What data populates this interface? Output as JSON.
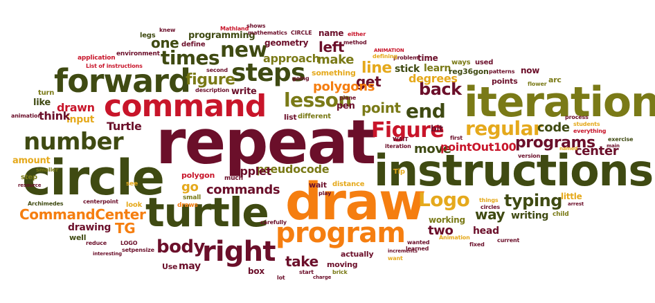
{
  "colors": {
    "dark_olive": "#3f4a12",
    "orange": "#f57e10",
    "gold": "#e5a91c",
    "maroon": "#6b0f2a",
    "red": "#c8152a",
    "olive": "#7a7a17",
    "light_olive": "#9a9a22"
  },
  "words": [
    {
      "t": "repeat"
    },
    {
      "t": "instructions"
    },
    {
      "t": "circle"
    },
    {
      "t": "draw"
    },
    {
      "t": "turtle"
    },
    {
      "t": "iteration"
    },
    {
      "t": "command"
    },
    {
      "t": "forward"
    },
    {
      "t": "number"
    },
    {
      "t": "program"
    },
    {
      "t": "steps"
    },
    {
      "t": "right"
    },
    {
      "t": "Figure"
    },
    {
      "t": "new"
    },
    {
      "t": "times"
    },
    {
      "t": "lesson"
    },
    {
      "t": "regular"
    },
    {
      "t": "Logo"
    },
    {
      "t": "end"
    },
    {
      "t": "body"
    },
    {
      "t": "typing"
    },
    {
      "t": "CommandCenter"
    },
    {
      "t": "back"
    },
    {
      "t": "programs"
    },
    {
      "t": "figure"
    },
    {
      "t": "line"
    },
    {
      "t": "point"
    },
    {
      "t": "left"
    },
    {
      "t": "make"
    },
    {
      "t": "get"
    },
    {
      "t": "commands"
    },
    {
      "t": "pseudocode"
    },
    {
      "t": "take"
    },
    {
      "t": "center"
    },
    {
      "t": "code"
    },
    {
      "t": "move"
    },
    {
      "t": "pointOut100"
    },
    {
      "t": "applet"
    },
    {
      "t": "polygons"
    },
    {
      "t": "degrees"
    },
    {
      "t": "way"
    },
    {
      "t": "TG"
    },
    {
      "t": "two"
    },
    {
      "t": "writing"
    },
    {
      "t": "head"
    },
    {
      "t": "drawing"
    },
    {
      "t": "working"
    },
    {
      "t": "approach"
    },
    {
      "t": "stick"
    },
    {
      "t": "learn"
    },
    {
      "t": "reg36gon"
    },
    {
      "t": "one"
    },
    {
      "t": "programming"
    },
    {
      "t": "geometry"
    },
    {
      "t": "name"
    },
    {
      "t": "drawn"
    },
    {
      "t": "input"
    },
    {
      "t": "Turtle"
    },
    {
      "t": "think"
    },
    {
      "t": "amount"
    },
    {
      "t": "like"
    },
    {
      "t": "turn"
    },
    {
      "t": "write"
    },
    {
      "t": "pen"
    },
    {
      "t": "polygon"
    },
    {
      "t": "go"
    },
    {
      "t": "may"
    },
    {
      "t": "Use"
    },
    {
      "t": "box"
    },
    {
      "t": "moving"
    },
    {
      "t": "actually"
    },
    {
      "t": "wait"
    },
    {
      "t": "distance"
    },
    {
      "t": "Tip"
    },
    {
      "t": "bit"
    },
    {
      "t": "little"
    },
    {
      "t": "list"
    },
    {
      "t": "different"
    },
    {
      "t": "time"
    },
    {
      "t": "used"
    },
    {
      "t": "ways"
    },
    {
      "t": "now"
    },
    {
      "t": "arc"
    },
    {
      "t": "points"
    },
    {
      "t": "something"
    },
    {
      "t": "legs"
    },
    {
      "t": "define"
    },
    {
      "t": "application"
    },
    {
      "t": "environment"
    },
    {
      "t": "step"
    },
    {
      "t": "look"
    },
    {
      "t": "well"
    },
    {
      "t": "draws"
    },
    {
      "t": "much"
    },
    {
      "t": "small"
    },
    {
      "t": "mathematics"
    },
    {
      "t": "CIRCLE"
    },
    {
      "t": "either"
    },
    {
      "t": "method"
    },
    {
      "t": "shows"
    },
    {
      "t": "knew"
    },
    {
      "t": "reduce"
    },
    {
      "t": "LOGO"
    },
    {
      "t": "setpensize"
    },
    {
      "t": "Archimedes"
    },
    {
      "t": "smaller"
    },
    {
      "t": "centerpoint"
    },
    {
      "t": "child"
    },
    {
      "t": "version"
    },
    {
      "t": "exercise"
    },
    {
      "t": "everything"
    },
    {
      "t": "process"
    },
    {
      "t": "students"
    },
    {
      "t": "flower"
    },
    {
      "t": "patterns"
    },
    {
      "t": "circles"
    },
    {
      "t": "things"
    },
    {
      "t": "current"
    },
    {
      "t": "fixed"
    },
    {
      "t": "Animation"
    },
    {
      "t": "wanted"
    },
    {
      "t": "learned"
    },
    {
      "t": "carefully"
    },
    {
      "t": "play"
    },
    {
      "t": "animation"
    },
    {
      "t": "going"
    },
    {
      "t": "plane"
    },
    {
      "t": "problem"
    },
    {
      "t": "defining"
    },
    {
      "t": "second"
    },
    {
      "t": "Mathland"
    },
    {
      "t": "first"
    },
    {
      "t": "iteration"
    },
    {
      "t": "WAIT"
    },
    {
      "t": "description"
    },
    {
      "t": "List of instructions"
    },
    {
      "t": "ANIMATION"
    },
    {
      "t": "see"
    },
    {
      "t": "start"
    },
    {
      "t": "brick"
    },
    {
      "t": "lot"
    },
    {
      "t": "want"
    },
    {
      "t": "charge"
    },
    {
      "t": "interesting"
    },
    {
      "t": "resource"
    },
    {
      "t": "arrest"
    },
    {
      "t": "main"
    },
    {
      "t": "named"
    },
    {
      "t": "increments"
    }
  ]
}
